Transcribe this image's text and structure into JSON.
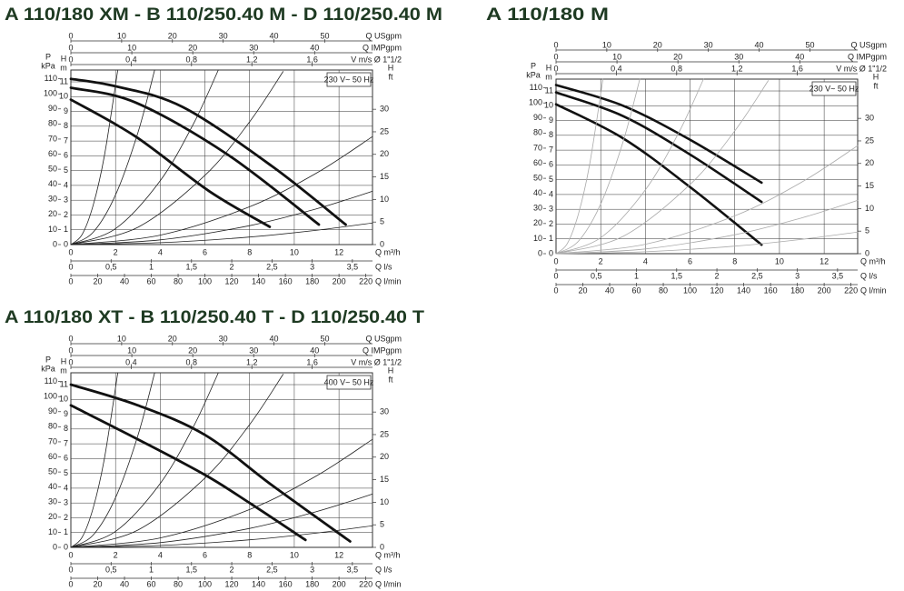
{
  "chart_data": [
    {
      "type": "line",
      "title": "A 110/180 XM - B 110/250.40 M - D 110/250.40 M",
      "box": "230 V~ 50 Hz",
      "xlabel": "Q m³/h",
      "xlim": [
        0,
        13.5
      ],
      "xticks": [
        0,
        2,
        4,
        6,
        8,
        10,
        12
      ],
      "ylabel": [
        "H",
        "m"
      ],
      "ylim": [
        0,
        11.8
      ],
      "yticks": [
        0,
        1,
        2,
        3,
        4,
        5,
        6,
        7,
        8,
        9,
        10,
        11
      ],
      "grid": true,
      "axes": [
        {
          "label": "Q USgpm",
          "side": "top",
          "lim": [
            0,
            59.4
          ],
          "ticks": [
            0,
            10,
            20,
            30,
            40,
            50
          ]
        },
        {
          "label": "Q IMPgpm",
          "side": "top",
          "lim": [
            0,
            49.5
          ],
          "ticks": [
            0,
            10,
            20,
            30,
            40
          ]
        },
        {
          "label": "V m/s Ø 1\"1/2",
          "side": "top",
          "lim": [
            0,
            2.0
          ],
          "ticks": [
            0,
            {
              "value": 0.4,
              "label": "0,4"
            },
            {
              "value": 0.8,
              "label": "0,8"
            },
            {
              "value": 1.2,
              "label": "1,2"
            },
            {
              "value": 1.6,
              "label": "1,6"
            }
          ]
        },
        {
          "label": "Q l/s",
          "side": "bottom",
          "lim": [
            0,
            3.75
          ],
          "ticks": [
            0,
            {
              "value": 0.5,
              "label": "0,5"
            },
            1,
            {
              "value": 1.5,
              "label": "1,5"
            },
            2,
            {
              "value": 2.5,
              "label": "2,5"
            },
            3,
            {
              "value": 3.5,
              "label": "3,5"
            }
          ]
        },
        {
          "label": "Q l/min",
          "side": "bottom",
          "lim": [
            0,
            225
          ],
          "ticks": [
            0,
            20,
            40,
            60,
            80,
            100,
            120,
            140,
            160,
            180,
            200,
            220
          ]
        },
        {
          "label": [
            "P",
            "kPa"
          ],
          "side": "left",
          "lim": [
            0,
            115.8
          ],
          "ticks": [
            0,
            10,
            20,
            30,
            40,
            50,
            60,
            70,
            80,
            90,
            100,
            110
          ]
        },
        {
          "label": [
            "H",
            "ft"
          ],
          "side": "right",
          "lim": [
            0,
            38.7
          ],
          "ticks": [
            0,
            5,
            10,
            15,
            20,
            25,
            30
          ]
        }
      ],
      "series": [
        {
          "color": "#111111",
          "width": 2.8,
          "x": [
            0,
            2,
            5,
            9,
            12.3
          ],
          "values": [
            11.2,
            10.7,
            9.3,
            5.3,
            1.35
          ]
        },
        {
          "color": "#111111",
          "width": 2.8,
          "x": [
            0,
            2.9,
            7,
            11.1
          ],
          "values": [
            10.6,
            9.6,
            6.1,
            1.35
          ]
        },
        {
          "color": "#111111",
          "width": 2.8,
          "x": [
            0,
            2.9,
            6.2,
            8.9
          ],
          "values": [
            9.8,
            7.3,
            3.6,
            1.2
          ]
        },
        {
          "color": "#222222",
          "width": 0.8,
          "x": [
            0,
            0.5,
            1,
            1.5,
            2.1
          ],
          "values": [
            0,
            0.67,
            2.67,
            6.0,
            11.8
          ]
        },
        {
          "color": "#222222",
          "width": 0.8,
          "x": [
            0,
            1,
            2,
            3,
            3.75
          ],
          "values": [
            0,
            0.84,
            3.36,
            7.56,
            11.8
          ]
        },
        {
          "color": "#222222",
          "width": 0.8,
          "x": [
            0,
            2,
            4,
            5.5,
            6.6
          ],
          "values": [
            0,
            1.08,
            4.32,
            8.2,
            11.8
          ]
        },
        {
          "color": "#222222",
          "width": 0.8,
          "x": [
            0,
            3,
            6,
            8,
            9.5
          ],
          "values": [
            0,
            1.17,
            4.68,
            8.3,
            11.7
          ]
        },
        {
          "color": "#222222",
          "width": 0.8,
          "x": [
            0,
            4,
            8,
            11,
            13.5
          ],
          "values": [
            0,
            0.64,
            2.56,
            4.84,
            7.3
          ]
        },
        {
          "color": "#222222",
          "width": 0.8,
          "x": [
            0,
            4,
            8,
            11,
            13.5
          ],
          "values": [
            0,
            0.32,
            1.28,
            2.42,
            3.6
          ]
        },
        {
          "color": "#222222",
          "width": 0.8,
          "x": [
            0,
            4,
            8,
            11,
            13.5
          ],
          "values": [
            0,
            0.13,
            0.51,
            0.97,
            1.46
          ]
        }
      ]
    },
    {
      "type": "line",
      "title": "A 110/180 M",
      "box": "230 V~ 50 Hz",
      "xlabel": "Q m³/h",
      "xlim": [
        0,
        13.5
      ],
      "xticks": [
        0,
        2,
        4,
        6,
        8,
        10,
        12
      ],
      "ylabel": [
        "H",
        "m"
      ],
      "ylim": [
        0,
        11.8
      ],
      "yticks": [
        0,
        1,
        2,
        3,
        4,
        5,
        6,
        7,
        8,
        9,
        10,
        11
      ],
      "grid": true,
      "axes": [
        {
          "label": "Q USgpm",
          "side": "top",
          "lim": [
            0,
            59.4
          ],
          "ticks": [
            0,
            10,
            20,
            30,
            40,
            50
          ]
        },
        {
          "label": "Q IMPgpm",
          "side": "top",
          "lim": [
            0,
            49.5
          ],
          "ticks": [
            0,
            10,
            20,
            30,
            40
          ]
        },
        {
          "label": "V m/s Ø 1\"1/2",
          "side": "top",
          "lim": [
            0,
            2.0
          ],
          "ticks": [
            0,
            {
              "value": 0.4,
              "label": "0,4"
            },
            {
              "value": 0.8,
              "label": "0,8"
            },
            {
              "value": 1.2,
              "label": "1,2"
            },
            {
              "value": 1.6,
              "label": "1,6"
            }
          ]
        },
        {
          "label": "Q l/s",
          "side": "bottom",
          "lim": [
            0,
            3.75
          ],
          "ticks": [
            0,
            {
              "value": 0.5,
              "label": "0,5"
            },
            1,
            {
              "value": 1.5,
              "label": "1,5"
            },
            2,
            {
              "value": 2.5,
              "label": "2,5"
            },
            3,
            {
              "value": 3.5,
              "label": "3,5"
            }
          ]
        },
        {
          "label": "Q l/min",
          "side": "bottom",
          "lim": [
            0,
            225
          ],
          "ticks": [
            0,
            20,
            40,
            60,
            80,
            100,
            120,
            140,
            160,
            180,
            200,
            220
          ]
        },
        {
          "label": [
            "P",
            "kPa"
          ],
          "side": "left",
          "lim": [
            0,
            115.8
          ],
          "ticks": [
            0,
            10,
            20,
            30,
            40,
            50,
            60,
            70,
            80,
            90,
            100,
            110
          ]
        },
        {
          "label": [
            "H",
            "ft"
          ],
          "side": "right",
          "lim": [
            0,
            38.7
          ],
          "ticks": [
            0,
            5,
            10,
            15,
            20,
            25,
            30
          ]
        }
      ],
      "series": [
        {
          "color": "#111111",
          "width": 2.6,
          "x": [
            0,
            3,
            6,
            9.2
          ],
          "values": [
            11.4,
            10,
            7.7,
            4.8
          ]
        },
        {
          "color": "#111111",
          "width": 2.6,
          "x": [
            0,
            3,
            6,
            9.2
          ],
          "values": [
            10.9,
            9.3,
            6.7,
            3.5
          ]
        },
        {
          "color": "#111111",
          "width": 2.6,
          "x": [
            0,
            3,
            6,
            9.2
          ],
          "values": [
            10.1,
            7.8,
            4.5,
            0.6
          ]
        },
        {
          "color": "#aaaaaa",
          "width": 0.8,
          "x": [
            0,
            0.5,
            1,
            1.5,
            2.1
          ],
          "values": [
            0,
            0.67,
            2.67,
            6.0,
            11.8
          ]
        },
        {
          "color": "#aaaaaa",
          "width": 0.8,
          "x": [
            0,
            1,
            2,
            3,
            3.75
          ],
          "values": [
            0,
            0.84,
            3.36,
            7.56,
            11.8
          ]
        },
        {
          "color": "#aaaaaa",
          "width": 0.8,
          "x": [
            0,
            2,
            4,
            5.5,
            6.6
          ],
          "values": [
            0,
            1.08,
            4.32,
            8.2,
            11.8
          ]
        },
        {
          "color": "#aaaaaa",
          "width": 0.8,
          "x": [
            0,
            3,
            6,
            8,
            9.5
          ],
          "values": [
            0,
            1.17,
            4.68,
            8.3,
            11.7
          ]
        },
        {
          "color": "#aaaaaa",
          "width": 0.8,
          "x": [
            0,
            4,
            8,
            11,
            13.5
          ],
          "values": [
            0,
            0.64,
            2.56,
            4.84,
            7.3
          ]
        },
        {
          "color": "#aaaaaa",
          "width": 0.8,
          "x": [
            0,
            4,
            8,
            11,
            13.5
          ],
          "values": [
            0,
            0.32,
            1.28,
            2.42,
            3.6
          ]
        },
        {
          "color": "#aaaaaa",
          "width": 0.8,
          "x": [
            0,
            4,
            8,
            11,
            13.5
          ],
          "values": [
            0,
            0.13,
            0.51,
            0.97,
            1.46
          ]
        }
      ]
    },
    {
      "type": "line",
      "title": "A 110/180 XT - B 110/250.40 T - D 110/250.40 T",
      "box": "400 V~ 50 Hz",
      "xlabel": "Q m³/h",
      "xlim": [
        0,
        13.5
      ],
      "xticks": [
        0,
        2,
        4,
        6,
        8,
        10,
        12
      ],
      "ylabel": [
        "H",
        "m"
      ],
      "ylim": [
        0,
        11.8
      ],
      "yticks": [
        0,
        1,
        2,
        3,
        4,
        5,
        6,
        7,
        8,
        9,
        10,
        11
      ],
      "grid": true,
      "axes": [
        {
          "label": "Q USgpm",
          "side": "top",
          "lim": [
            0,
            59.4
          ],
          "ticks": [
            0,
            10,
            20,
            30,
            40,
            50
          ]
        },
        {
          "label": "Q IMPgpm",
          "side": "top",
          "lim": [
            0,
            49.5
          ],
          "ticks": [
            0,
            10,
            20,
            30,
            40
          ]
        },
        {
          "label": "V m/s Ø 1\"1/2",
          "side": "top",
          "lim": [
            0,
            2.0
          ],
          "ticks": [
            0,
            {
              "value": 0.4,
              "label": "0,4"
            },
            {
              "value": 0.8,
              "label": "0,8"
            },
            {
              "value": 1.2,
              "label": "1,2"
            },
            {
              "value": 1.6,
              "label": "1,6"
            }
          ]
        },
        {
          "label": "Q l/s",
          "side": "bottom",
          "lim": [
            0,
            3.75
          ],
          "ticks": [
            0,
            {
              "value": 0.5,
              "label": "0,5"
            },
            1,
            {
              "value": 1.5,
              "label": "1,5"
            },
            2,
            {
              "value": 2.5,
              "label": "2,5"
            },
            3,
            {
              "value": 3.5,
              "label": "3,5"
            }
          ]
        },
        {
          "label": "Q l/min",
          "side": "bottom",
          "lim": [
            0,
            225
          ],
          "ticks": [
            0,
            20,
            40,
            60,
            80,
            100,
            120,
            140,
            160,
            180,
            200,
            220
          ]
        },
        {
          "label": [
            "P",
            "kPa"
          ],
          "side": "left",
          "lim": [
            0,
            115.8
          ],
          "ticks": [
            0,
            10,
            20,
            30,
            40,
            50,
            60,
            70,
            80,
            90,
            100,
            110
          ]
        },
        {
          "label": [
            "H",
            "ft"
          ],
          "side": "right",
          "lim": [
            0,
            38.7
          ],
          "ticks": [
            0,
            5,
            10,
            15,
            20,
            25,
            30
          ]
        }
      ],
      "series": [
        {
          "color": "#111111",
          "width": 2.8,
          "x": [
            0,
            3,
            6,
            9,
            12.5
          ],
          "values": [
            11,
            9.6,
            7.6,
            4.2,
            0.4
          ]
        },
        {
          "color": "#111111",
          "width": 2.8,
          "x": [
            0,
            3,
            6,
            8,
            10.5
          ],
          "values": [
            9.6,
            7.3,
            4.9,
            3,
            0.5
          ]
        },
        {
          "color": "#222222",
          "width": 0.8,
          "x": [
            0,
            0.5,
            1,
            1.5,
            2.1
          ],
          "values": [
            0,
            0.67,
            2.67,
            6.0,
            11.8
          ]
        },
        {
          "color": "#222222",
          "width": 0.8,
          "x": [
            0,
            1,
            2,
            3,
            3.75
          ],
          "values": [
            0,
            0.84,
            3.36,
            7.56,
            11.8
          ]
        },
        {
          "color": "#222222",
          "width": 0.8,
          "x": [
            0,
            2,
            4,
            5.5,
            6.6
          ],
          "values": [
            0,
            1.08,
            4.32,
            8.2,
            11.8
          ]
        },
        {
          "color": "#222222",
          "width": 0.8,
          "x": [
            0,
            3,
            6,
            8,
            9.5
          ],
          "values": [
            0,
            1.17,
            4.68,
            8.3,
            11.7
          ]
        },
        {
          "color": "#222222",
          "width": 0.8,
          "x": [
            0,
            4,
            8,
            11,
            13.5
          ],
          "values": [
            0,
            0.64,
            2.56,
            4.84,
            7.3
          ]
        },
        {
          "color": "#222222",
          "width": 0.8,
          "x": [
            0,
            4,
            8,
            11,
            13.5
          ],
          "values": [
            0,
            0.32,
            1.28,
            2.42,
            3.6
          ]
        },
        {
          "color": "#222222",
          "width": 0.8,
          "x": [
            0,
            4,
            8,
            11,
            13.5
          ],
          "values": [
            0,
            0.13,
            0.51,
            0.97,
            1.46
          ]
        }
      ]
    }
  ]
}
